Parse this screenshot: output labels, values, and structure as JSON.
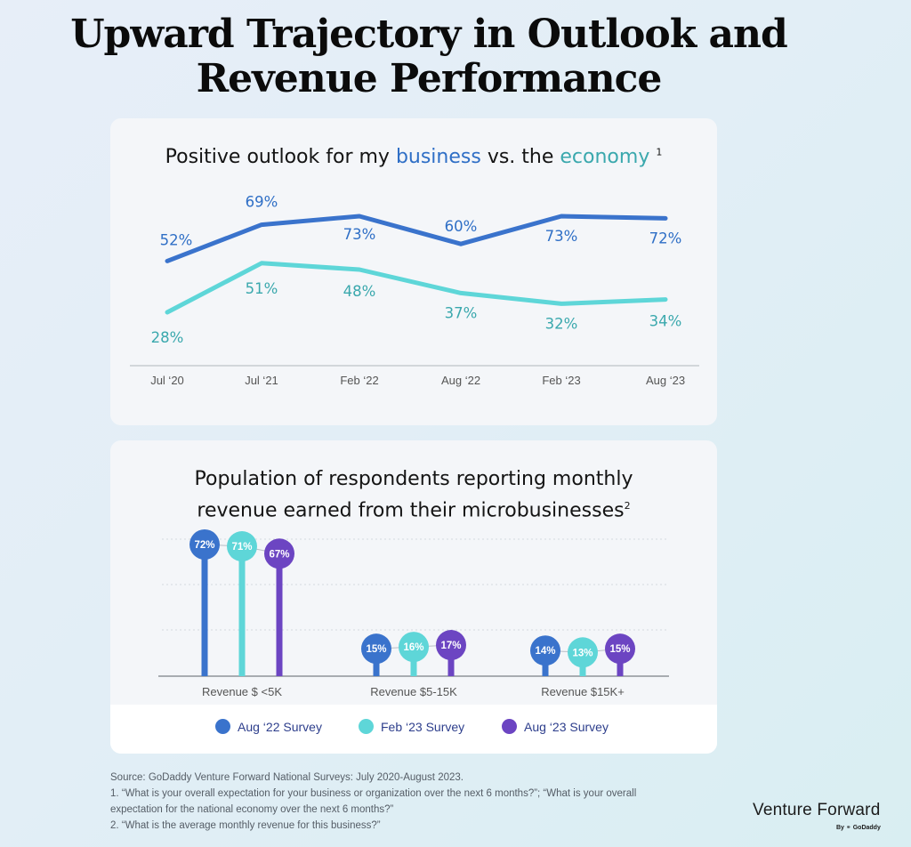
{
  "title": "Upward Trajectory in Outlook and Revenue Performance",
  "title_lines": [
    "Upward Trajectory in Outlook and",
    "Revenue Performance"
  ],
  "chart1": {
    "title_parts": {
      "pre": "Positive outlook for my ",
      "business": "business",
      "mid": " vs. the ",
      "economy": "economy",
      "footnote": "1"
    }
  },
  "chart2": {
    "title_lines": [
      "Population of respondents reporting monthly",
      "revenue earned from their microbusinesses"
    ],
    "footnote": "2"
  },
  "legend": [
    "Aug ‘22 Survey",
    "Feb ‘23 Survey",
    "Aug ‘23 Survey"
  ],
  "source": {
    "line1": "Source: GoDaddy Venture Forward National Surveys: July 2020-August 2023.",
    "line2": "1. “What is your overall expectation for your business or organization over the next 6 months?”; “What is your overall",
    "line3": "expectation for the national economy over the next 6 months?”",
    "line4": "2. “What is the average monthly revenue for this business?”"
  },
  "brand": {
    "name": "Venture Forward",
    "by": "By",
    "company": "GoDaddy"
  },
  "colors": {
    "business": "#3a73cc",
    "economy": "#5ed6d8",
    "business_label": "#2f6fc6",
    "economy_label": "#3aa8ad",
    "aug22": "#3a73cc",
    "feb23": "#5ed6d8",
    "aug23": "#6c45c2"
  },
  "chart_data": [
    {
      "type": "line",
      "x": [
        "Jul ‘20",
        "Jul ‘21",
        "Feb ‘22",
        "Aug ‘22",
        "Feb ‘23",
        "Aug ‘23"
      ],
      "series": [
        {
          "name": "business",
          "values": [
            52,
            69,
            73,
            60,
            73,
            72
          ]
        },
        {
          "name": "economy",
          "values": [
            28,
            51,
            48,
            37,
            32,
            34
          ]
        }
      ],
      "ylim": [
        20,
        80
      ],
      "grid": false
    },
    {
      "type": "bar",
      "categories": [
        "Revenue $ <5K",
        "Revenue $5-15K",
        "Revenue $15K+"
      ],
      "series": [
        {
          "name": "Aug ‘22 Survey",
          "values": [
            72,
            15,
            14
          ]
        },
        {
          "name": "Feb ‘23 Survey",
          "values": [
            71,
            16,
            13
          ]
        },
        {
          "name": "Aug ‘23 Survey",
          "values": [
            67,
            17,
            15
          ]
        }
      ],
      "ylim": [
        0,
        75
      ],
      "grid": true,
      "legend_position": "bottom"
    }
  ]
}
